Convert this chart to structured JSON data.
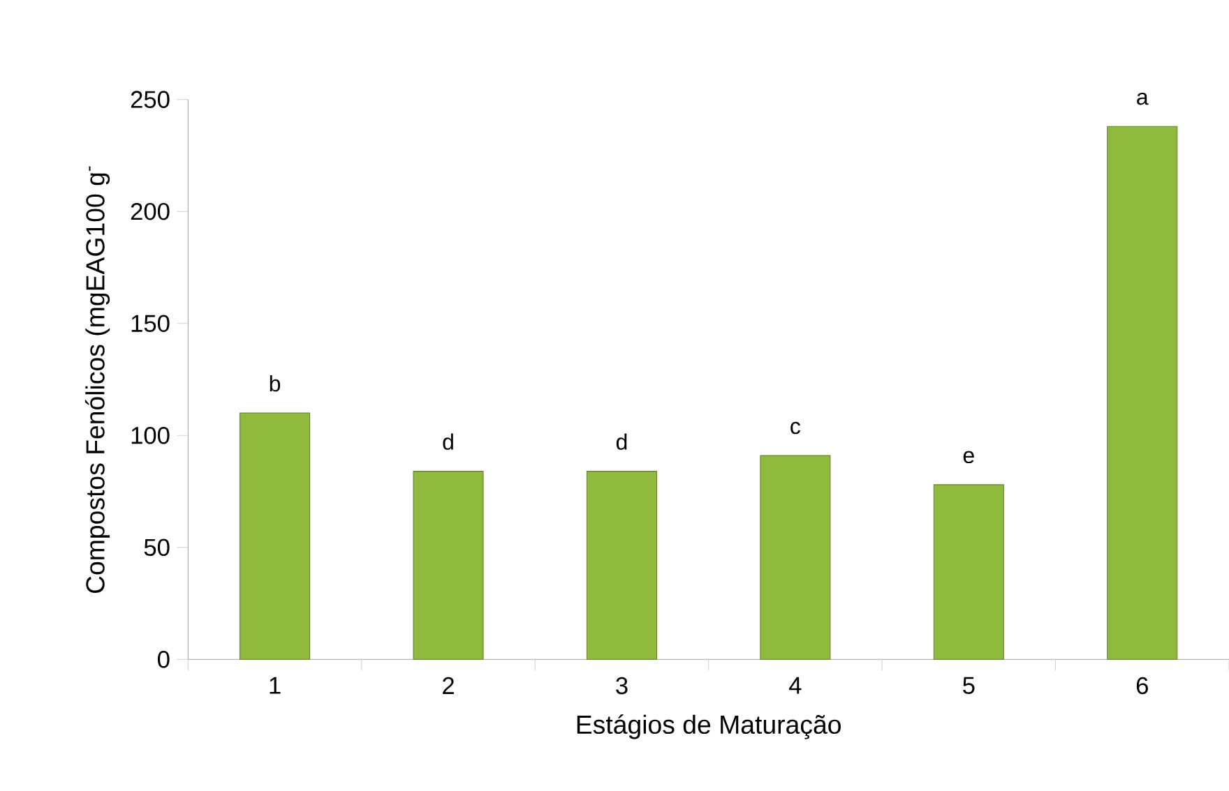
{
  "chart_data": {
    "type": "bar",
    "xlabel": "Estágios de Maturação",
    "ylabel": "Compostos Fenólicos  (mgEAG100 g$^{-}$",
    "categories": [
      "1",
      "2",
      "3",
      "4",
      "5",
      "6"
    ],
    "values": [
      110,
      84,
      84,
      91,
      78,
      238
    ],
    "color": "#8fba3e",
    "ylim": [
      0,
      250
    ],
    "yticks": [
      0,
      50,
      100,
      150,
      200,
      250
    ],
    "grid": false,
    "annotations": [
      {
        "text": "b",
        "x": "1",
        "y": 110
      },
      {
        "text": "d",
        "x": "2",
        "y": 84
      },
      {
        "text": "d",
        "x": "3",
        "y": 84
      },
      {
        "text": "c",
        "x": "4",
        "y": 91
      },
      {
        "text": "e",
        "x": "5",
        "y": 78
      },
      {
        "text": "a",
        "x": "6",
        "y": 238
      }
    ]
  }
}
